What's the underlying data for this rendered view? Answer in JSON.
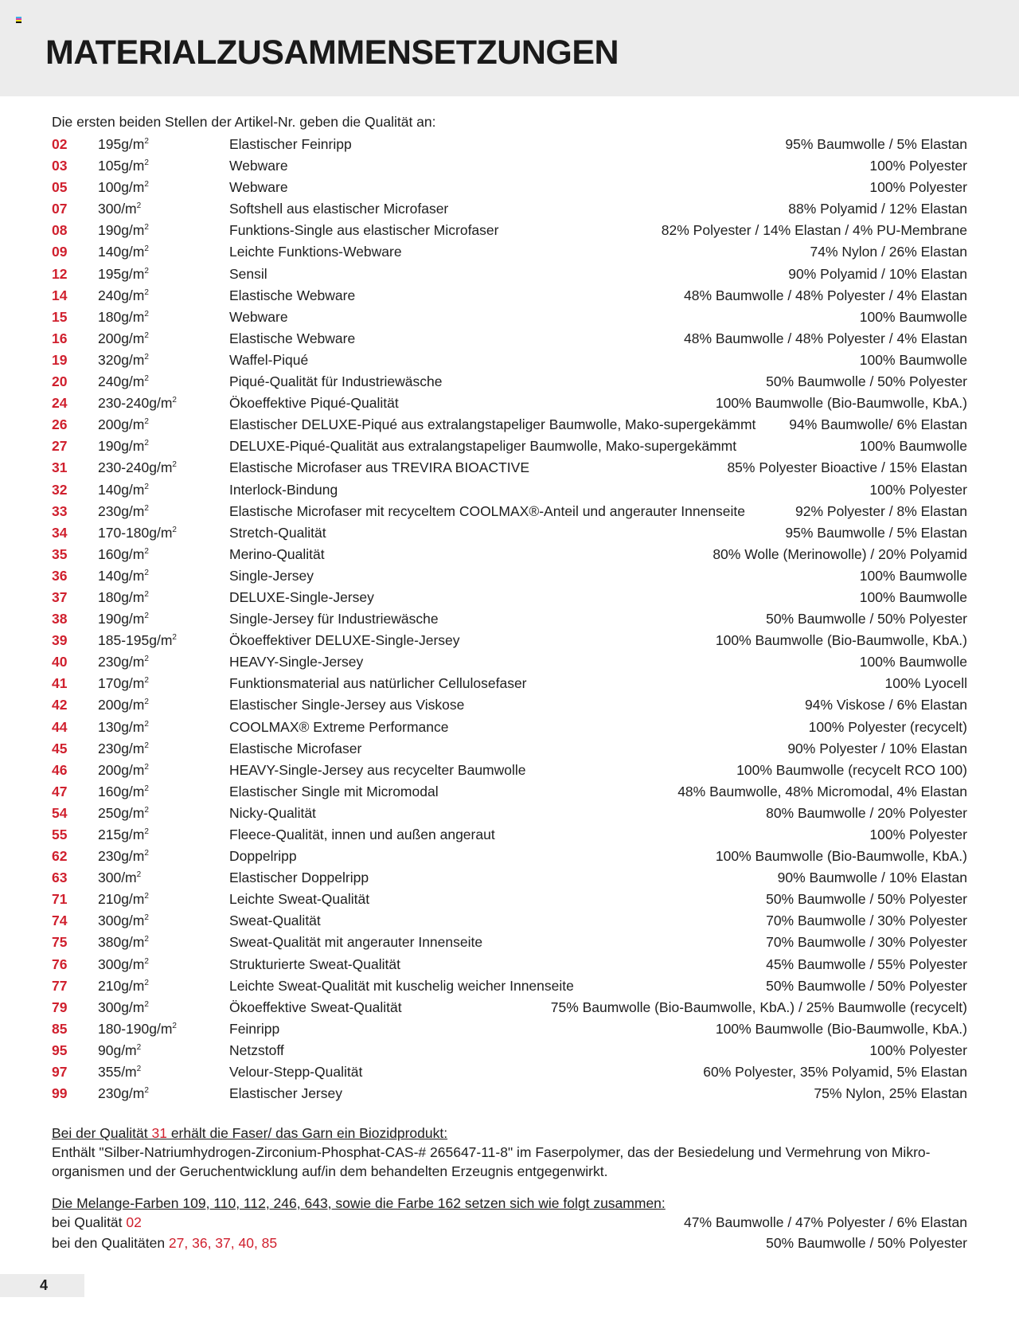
{
  "header": {
    "title": "MATERIALZUSAMMENSETZUNGEN"
  },
  "intro": "Die ersten beiden Stellen der Artikel-Nr. geben die Qualität an:",
  "colors": {
    "accent": "#d0202e",
    "header_bg": "#ececec"
  },
  "rows": [
    {
      "code": "02",
      "weight": "195g/m",
      "desc": "Elastischer Feinripp",
      "comp": "95% Baumwolle / 5% Elastan"
    },
    {
      "code": "03",
      "weight": "105g/m",
      "desc": "Webware",
      "comp": "100% Polyester"
    },
    {
      "code": "05",
      "weight": "100g/m",
      "desc": "Webware",
      "comp": "100% Polyester"
    },
    {
      "code": "07",
      "weight": "300/m",
      "desc": "Softshell aus elastischer Microfaser",
      "comp": "88% Polyamid / 12% Elastan"
    },
    {
      "code": "08",
      "weight": "190g/m",
      "desc": "Funktions-Single aus elastischer Microfaser",
      "comp": "82% Polyester / 14% Elastan / 4% PU-Membrane"
    },
    {
      "code": "09",
      "weight": "140g/m",
      "desc": "Leichte Funktions-Webware",
      "comp": "74% Nylon / 26% Elastan"
    },
    {
      "code": "12",
      "weight": "195g/m",
      "desc": "Sensil",
      "comp": "90% Polyamid / 10% Elastan"
    },
    {
      "code": "14",
      "weight": "240g/m",
      "desc": "Elastische Webware",
      "comp": "48% Baumwolle / 48% Polyester / 4% Elastan"
    },
    {
      "code": "15",
      "weight": "180g/m",
      "desc": "Webware",
      "comp": "100% Baumwolle"
    },
    {
      "code": "16",
      "weight": "200g/m",
      "desc": "Elastische Webware",
      "comp": "48% Baumwolle / 48% Polyester / 4% Elastan"
    },
    {
      "code": "19",
      "weight": "320g/m",
      "desc": "Waffel-Piqué",
      "comp": "100% Baumwolle"
    },
    {
      "code": "20",
      "weight": "240g/m",
      "desc": "Piqué-Qualität für Industriewäsche",
      "comp": "50% Baumwolle / 50% Polyester"
    },
    {
      "code": "24",
      "weight": "230-240g/m",
      "desc": "Ökoeffektive Piqué-Qualität",
      "comp": "100% Baumwolle (Bio-Baumwolle, KbA.)"
    },
    {
      "code": "26",
      "weight": "200g/m",
      "desc": "Elastischer DELUXE-Piqué aus extralangstapeliger Baumwolle, Mako-supergekämmt",
      "comp": "94% Baumwolle/ 6% Elastan"
    },
    {
      "code": "27",
      "weight": "190g/m",
      "desc": "DELUXE-Piqué-Qualität aus extralangstapeliger Baumwolle, Mako-supergekämmt",
      "comp": "100% Baumwolle"
    },
    {
      "code": "31",
      "weight": "230-240g/m",
      "desc": "Elastische Microfaser aus TREVIRA BIOACTIVE",
      "comp": "85% Polyester Bioactive / 15% Elastan"
    },
    {
      "code": "32",
      "weight": "140g/m",
      "desc": "Interlock-Bindung",
      "comp": "100% Polyester"
    },
    {
      "code": "33",
      "weight": "230g/m",
      "desc": "Elastische Microfaser mit recyceltem COOLMAX®-Anteil und angerauter Innenseite",
      "comp": "92% Polyester / 8% Elastan"
    },
    {
      "code": "34",
      "weight": "170-180g/m",
      "desc": "Stretch-Qualität",
      "comp": "95% Baumwolle / 5% Elastan"
    },
    {
      "code": "35",
      "weight": "160g/m",
      "desc": "Merino-Qualität",
      "comp": "80% Wolle (Merinowolle) / 20% Polyamid"
    },
    {
      "code": "36",
      "weight": "140g/m",
      "desc": "Single-Jersey",
      "comp": "100% Baumwolle"
    },
    {
      "code": "37",
      "weight": "180g/m",
      "desc": "DELUXE-Single-Jersey",
      "comp": "100% Baumwolle"
    },
    {
      "code": "38",
      "weight": "190g/m",
      "desc": "Single-Jersey für Industriewäsche",
      "comp": "50% Baumwolle / 50% Polyester"
    },
    {
      "code": "39",
      "weight": "185-195g/m",
      "desc": "Ökoeffektiver DELUXE-Single-Jersey",
      "comp": "100% Baumwolle (Bio-Baumwolle, KbA.)"
    },
    {
      "code": "40",
      "weight": "230g/m",
      "desc": "HEAVY-Single-Jersey",
      "comp": "100% Baumwolle"
    },
    {
      "code": "41",
      "weight": "170g/m",
      "desc": "Funktionsmaterial aus natürlicher Cellulosefaser",
      "comp": "100% Lyocell"
    },
    {
      "code": "42",
      "weight": "200g/m",
      "desc": "Elastischer Single-Jersey aus Viskose",
      "comp": "94% Viskose / 6% Elastan"
    },
    {
      "code": "44",
      "weight": "130g/m",
      "desc": "COOLMAX® Extreme Performance",
      "comp": "100% Polyester (recycelt)"
    },
    {
      "code": "45",
      "weight": "230g/m",
      "desc": "Elastische Microfaser",
      "comp": "90% Polyester / 10% Elastan"
    },
    {
      "code": "46",
      "weight": "200g/m",
      "desc": "HEAVY-Single-Jersey aus recycelter Baumwolle",
      "comp": "100% Baumwolle (recycelt RCO 100)"
    },
    {
      "code": "47",
      "weight": "160g/m",
      "desc": "Elastischer Single mit Micromodal",
      "comp": "48% Baumwolle, 48% Micromodal, 4% Elastan"
    },
    {
      "code": "54",
      "weight": "250g/m",
      "desc": "Nicky-Qualität",
      "comp": "80% Baumwolle / 20% Polyester"
    },
    {
      "code": "55",
      "weight": "215g/m",
      "desc": "Fleece-Qualität, innen und außen angeraut",
      "comp": "100% Polyester"
    },
    {
      "code": "62",
      "weight": "230g/m",
      "desc": "Doppelripp",
      "comp": "100% Baumwolle (Bio-Baumwolle, KbA.)"
    },
    {
      "code": "63",
      "weight": "300/m",
      "desc": "Elastischer Doppelripp",
      "comp": "90% Baumwolle / 10% Elastan"
    },
    {
      "code": "71",
      "weight": "210g/m",
      "desc": "Leichte Sweat-Qualität",
      "comp": "50% Baumwolle / 50% Polyester"
    },
    {
      "code": "74",
      "weight": "300g/m",
      "desc": "Sweat-Qualität",
      "comp": "70% Baumwolle / 30% Polyester"
    },
    {
      "code": "75",
      "weight": "380g/m",
      "desc": "Sweat-Qualität mit angerauter Innenseite",
      "comp": "70% Baumwolle / 30% Polyester"
    },
    {
      "code": "76",
      "weight": "300g/m",
      "desc": "Strukturierte Sweat-Qualität",
      "comp": "45% Baumwolle / 55% Polyester"
    },
    {
      "code": "77",
      "weight": "210g/m",
      "desc": "Leichte Sweat-Qualität mit kuschelig weicher Innenseite",
      "comp": "50% Baumwolle / 50% Polyester"
    },
    {
      "code": "79",
      "weight": "300g/m",
      "desc": "Ökoeffektive Sweat-Qualität",
      "comp": "75% Baumwolle (Bio-Baumwolle, KbA.) / 25% Baumwolle (recycelt)"
    },
    {
      "code": "85",
      "weight": "180-190g/m",
      "desc": "Feinripp",
      "comp": "100% Baumwolle (Bio-Baumwolle, KbA.)"
    },
    {
      "code": "95",
      "weight": "90g/m",
      "desc": "Netzstoff",
      "comp": "100% Polyester"
    },
    {
      "code": "97",
      "weight": "355/m",
      "desc": "Velour-Stepp-Qualität",
      "comp": "60% Polyester, 35% Polyamid, 5% Elastan"
    },
    {
      "code": "99",
      "weight": "230g/m",
      "desc": "Elastischer Jersey",
      "comp": "75% Nylon, 25% Elastan"
    }
  ],
  "unit_exponent": "2",
  "biocide": {
    "heading_pre": "Bei der Qualität ",
    "heading_code": "31",
    "heading_post": " erhält die Faser/ das Garn ein Biozidprodukt:",
    "text": "Enthält \"Silber-Natriumhydrogen-Zirconium-Phosphat-CAS-# 265647-11-8\" im Faserpolymer, das der Besiedelung und Vermehrung von Mikro-organismen und der Geruchentwicklung auf/in dem behandelten Erzeugnis entgegenwirkt."
  },
  "melange": {
    "heading": "Die Melange-Farben 109, 110, 112, 246, 643, sowie die Farbe 162 setzen sich wie folgt zusammen:",
    "rows": [
      {
        "label": "bei Qualität ",
        "codes": "02",
        "comp": "47% Baumwolle / 47% Polyester / 6% Elastan"
      },
      {
        "label": "bei den Qualitäten ",
        "codes": "27, 36, 37, 40, 85",
        "comp": "50% Baumwolle / 50% Polyester"
      }
    ]
  },
  "page_number": "4"
}
